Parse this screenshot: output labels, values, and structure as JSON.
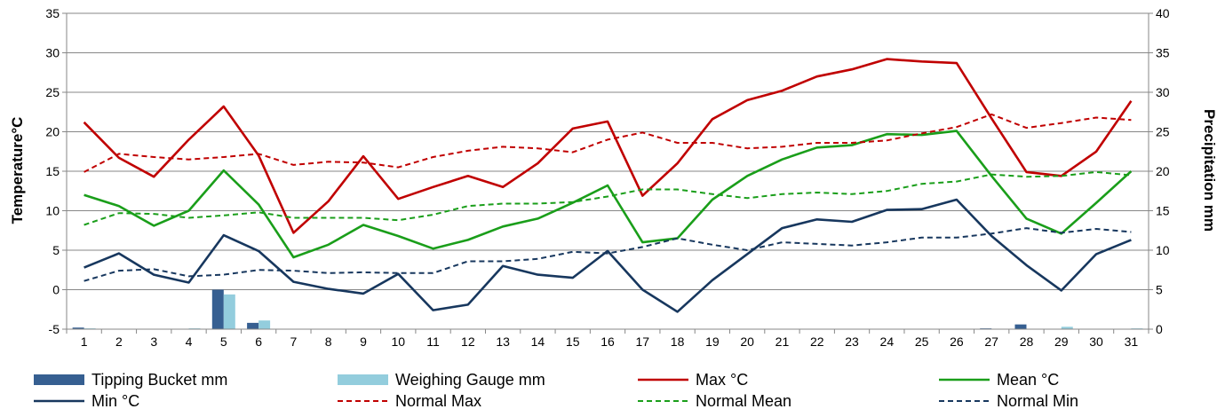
{
  "chart_data": {
    "type": "line",
    "title": "",
    "xlabel": "",
    "ylabel": "Temperature°C",
    "ylabel_right": "Precipitation mm",
    "ylim": [
      -5,
      35
    ],
    "ylim_right": [
      0,
      40
    ],
    "yticks": [
      "-5",
      "0",
      "5",
      "10",
      "15",
      "20",
      "25",
      "30",
      "35"
    ],
    "yticks_right": [
      "0",
      "5",
      "10",
      "15",
      "20",
      "25",
      "30",
      "35",
      "40"
    ],
    "categories": [
      "1",
      "2",
      "3",
      "4",
      "5",
      "6",
      "7",
      "8",
      "9",
      "10",
      "11",
      "12",
      "13",
      "14",
      "15",
      "16",
      "17",
      "18",
      "19",
      "20",
      "21",
      "22",
      "23",
      "24",
      "25",
      "26",
      "27",
      "28",
      "29",
      "30",
      "31"
    ],
    "grid": "horizontal",
    "legend_position": "bottom",
    "colors": {
      "tipping": "#365f91",
      "weighing": "#93cddd",
      "max": "#c00000",
      "mean": "#1a9e1a",
      "min": "#17375e",
      "normal_max": "#c00000",
      "normal_mean": "#1a9e1a",
      "normal_min": "#17375e"
    },
    "bars": [
      {
        "name": "Tipping Bucket mm",
        "key": "tipping",
        "values": [
          0.2,
          0,
          0,
          0,
          5.0,
          0.8,
          0,
          0,
          0,
          0,
          0,
          0,
          0,
          0,
          0,
          0,
          0,
          0,
          0,
          0,
          0,
          0,
          0,
          0,
          0,
          0,
          0.1,
          0.6,
          0,
          0,
          0
        ]
      },
      {
        "name": "Weighing Gauge mm",
        "key": "weighing",
        "values": [
          0.1,
          0,
          0,
          0.1,
          4.4,
          1.1,
          0,
          0,
          0,
          0,
          0,
          0,
          0,
          0,
          0,
          0,
          0,
          0,
          0,
          0,
          0,
          0,
          0,
          0,
          0,
          0,
          0,
          0,
          0.3,
          0,
          0.1
        ]
      }
    ],
    "series": [
      {
        "name": "Max °C",
        "key": "max",
        "dash": "solid",
        "values": [
          21.2,
          16.7,
          14.3,
          19.0,
          23.2,
          17.0,
          7.2,
          11.2,
          16.9,
          11.5,
          13.0,
          14.4,
          13.0,
          16.0,
          20.4,
          21.3,
          11.9,
          16.0,
          21.6,
          24.0,
          25.2,
          27.0,
          27.9,
          29.2,
          28.9,
          28.7,
          21.7,
          14.9,
          14.4,
          17.5,
          23.9
        ]
      },
      {
        "name": "Mean °C",
        "key": "mean",
        "dash": "solid",
        "values": [
          12.0,
          10.6,
          8.1,
          10.0,
          15.1,
          10.8,
          4.1,
          5.7,
          8.2,
          6.8,
          5.2,
          6.3,
          8.0,
          9.0,
          11.0,
          13.2,
          6.0,
          6.5,
          11.4,
          14.4,
          16.5,
          18.0,
          18.3,
          19.7,
          19.6,
          20.1,
          14.4,
          9.0,
          7.1,
          11.0,
          15.0
        ]
      },
      {
        "name": "Min °C",
        "key": "min",
        "dash": "solid",
        "values": [
          2.8,
          4.6,
          1.9,
          0.9,
          6.9,
          4.9,
          1.0,
          0.1,
          -0.5,
          2.0,
          -2.6,
          -1.9,
          3.0,
          1.9,
          1.5,
          4.9,
          0.0,
          -2.8,
          1.2,
          4.5,
          7.8,
          8.9,
          8.6,
          10.1,
          10.2,
          11.4,
          6.8,
          3.1,
          -0.1,
          4.5,
          6.3
        ]
      },
      {
        "name": "Normal Max",
        "key": "normal_max",
        "dash": "dashed",
        "values": [
          14.9,
          17.2,
          16.8,
          16.5,
          16.8,
          17.2,
          15.8,
          16.2,
          16.1,
          15.5,
          16.8,
          17.6,
          18.1,
          17.9,
          17.4,
          19.0,
          19.9,
          18.6,
          18.6,
          17.9,
          18.1,
          18.6,
          18.6,
          18.9,
          19.8,
          20.6,
          22.2,
          20.5,
          21.1,
          21.8,
          21.5
        ]
      },
      {
        "name": "Normal Mean",
        "key": "normal_mean",
        "dash": "dashed",
        "values": [
          8.2,
          9.7,
          9.6,
          9.1,
          9.4,
          9.8,
          9.1,
          9.1,
          9.1,
          8.8,
          9.5,
          10.6,
          10.9,
          10.9,
          11.1,
          11.8,
          12.7,
          12.7,
          12.1,
          11.6,
          12.1,
          12.3,
          12.1,
          12.5,
          13.4,
          13.7,
          14.6,
          14.3,
          14.4,
          14.9,
          14.5
        ]
      },
      {
        "name": "Normal Min",
        "key": "normal_min",
        "dash": "dashed",
        "values": [
          1.1,
          2.4,
          2.6,
          1.7,
          1.9,
          2.5,
          2.4,
          2.1,
          2.2,
          2.1,
          2.1,
          3.6,
          3.6,
          3.9,
          4.8,
          4.6,
          5.4,
          6.5,
          5.7,
          5.0,
          6.0,
          5.8,
          5.6,
          6.0,
          6.6,
          6.6,
          7.1,
          7.8,
          7.2,
          7.7,
          7.3
        ]
      }
    ],
    "legend": [
      {
        "label": "Tipping Bucket mm",
        "key": "tipping",
        "kind": "bar",
        "col": 0,
        "row": 0
      },
      {
        "label": "Weighing Gauge mm",
        "key": "weighing",
        "kind": "bar",
        "col": 1,
        "row": 0
      },
      {
        "label": "Max °C",
        "key": "max",
        "kind": "solid",
        "col": 2,
        "row": 0
      },
      {
        "label": "Mean °C",
        "key": "mean",
        "kind": "solid",
        "col": 3,
        "row": 0
      },
      {
        "label": "Min °C",
        "key": "min",
        "kind": "solid",
        "col": 0,
        "row": 1
      },
      {
        "label": "Normal Max",
        "key": "normal_max",
        "kind": "dashed",
        "col": 1,
        "row": 1
      },
      {
        "label": "Normal Mean",
        "key": "normal_mean",
        "kind": "dashed",
        "col": 2,
        "row": 1
      },
      {
        "label": "Normal Min",
        "key": "normal_min",
        "kind": "dashed",
        "col": 3,
        "row": 1
      }
    ]
  }
}
